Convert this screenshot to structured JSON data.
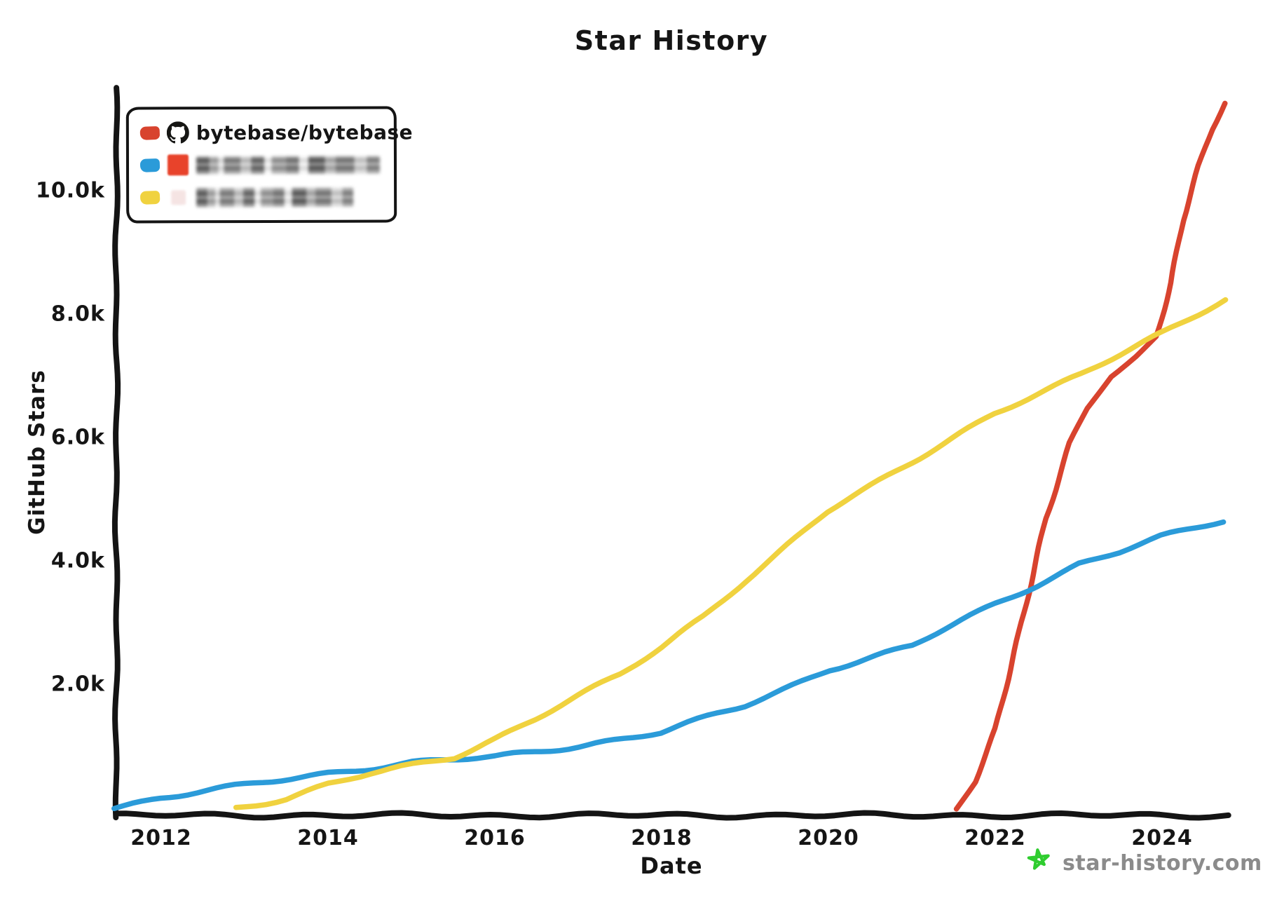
{
  "title": "Star History",
  "watermark": {
    "text": "star-history.com",
    "star_color": "#2fcd2f",
    "text_color": "#8b8b8b"
  },
  "legend": {
    "entries": [
      {
        "label": "bytebase/bytebase",
        "swatch_color": "#d8432e",
        "avatar": "github-octocat-icon",
        "blurred": false
      },
      {
        "label": "(blurred)",
        "swatch_color": "#2b9bd9",
        "avatar": "orange-red-square-avatar",
        "avatar_color": "#e8432b",
        "blurred": true
      },
      {
        "label": "(blurred)",
        "swatch_color": "#f0d23f",
        "avatar": "pale-pink-square-avatar",
        "avatar_color": "#f3dedd",
        "blurred": true
      }
    ]
  },
  "chart_data": {
    "type": "line",
    "title": "Star History",
    "xlabel": "Date",
    "ylabel": "GitHub Stars",
    "x_ticks": [
      2012,
      2014,
      2016,
      2018,
      2020,
      2022,
      2024
    ],
    "y_ticks": [
      {
        "value": 2000,
        "label": "2.0k"
      },
      {
        "value": 4000,
        "label": "4.0k"
      },
      {
        "value": 6000,
        "label": "6.0k"
      },
      {
        "value": 8000,
        "label": "8.0k"
      },
      {
        "value": 10000,
        "label": "10.0k"
      }
    ],
    "xlim": [
      2011.45,
      2024.79
    ],
    "ylim": [
      0,
      11670
    ],
    "grid": false,
    "legend_position": "upper-left",
    "series": [
      {
        "name": "bytebase/bytebase",
        "color": "#d8432e",
        "x": [
          2021.54,
          2021.75,
          2022.0,
          2022.3,
          2022.6,
          2022.9,
          2023.1,
          2023.4,
          2023.7,
          2023.93,
          2024.1,
          2024.25,
          2024.45,
          2024.6,
          2024.75
        ],
        "y": [
          0,
          400,
          1250,
          2850,
          4700,
          5900,
          6450,
          7000,
          7350,
          7650,
          8500,
          9500,
          10400,
          11000,
          11430
        ]
      },
      {
        "name": "(blurred)",
        "color": "#2b9bd9",
        "x": [
          2011.45,
          2012,
          2013,
          2014,
          2015,
          2016,
          2017,
          2018,
          2019,
          2020,
          2021,
          2022,
          2022.5,
          2023,
          2023.5,
          2024,
          2024.75
        ],
        "y": [
          0,
          160,
          360,
          560,
          730,
          820,
          1000,
          1220,
          1650,
          2250,
          2620,
          3300,
          3620,
          3950,
          4150,
          4380,
          4650
        ]
      },
      {
        "name": "(blurred)",
        "color": "#f0d23f",
        "x": [
          2012.9,
          2013.5,
          2014,
          2014.5,
          2015,
          2015.5,
          2016,
          2016.5,
          2017,
          2017.5,
          2018,
          2018.5,
          2019,
          2019.5,
          2020,
          2020.5,
          2021,
          2021.5,
          2022,
          2022.5,
          2023,
          2023.5,
          2024,
          2024.75
        ],
        "y": [
          0,
          150,
          380,
          550,
          680,
          820,
          1120,
          1450,
          1800,
          2150,
          2600,
          3100,
          3700,
          4250,
          4800,
          5200,
          5600,
          6000,
          6400,
          6700,
          7000,
          7350,
          7700,
          8250
        ]
      }
    ]
  }
}
